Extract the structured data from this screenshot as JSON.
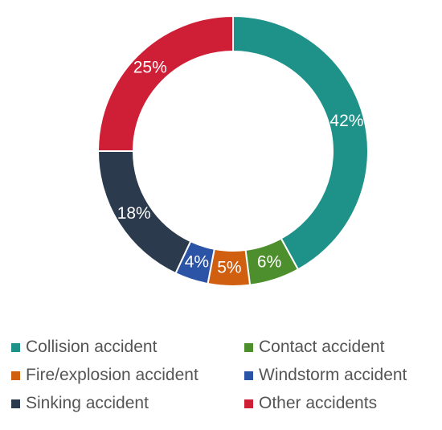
{
  "chart_data": {
    "type": "pie",
    "variant": "donut",
    "title": "",
    "categories": [
      "Collision accident",
      "Contact accident",
      "Fire/explosion accident",
      "Windstorm accident",
      "Sinking accident",
      "Other accidents"
    ],
    "values": [
      42,
      6,
      5,
      4,
      18,
      25
    ],
    "value_labels": [
      "42%",
      "6%",
      "5%",
      "4%",
      "18%",
      "25%"
    ],
    "colors": [
      "#1e9289",
      "#4e8f2d",
      "#d0600f",
      "#2b54a6",
      "#2b3a4d",
      "#cf1f36"
    ],
    "legend_position": "bottom",
    "legend_order": [
      "Collision accident",
      "Contact accident",
      "Fire/explosion accident",
      "Windstorm accident",
      "Sinking accident",
      "Other accidents"
    ]
  }
}
